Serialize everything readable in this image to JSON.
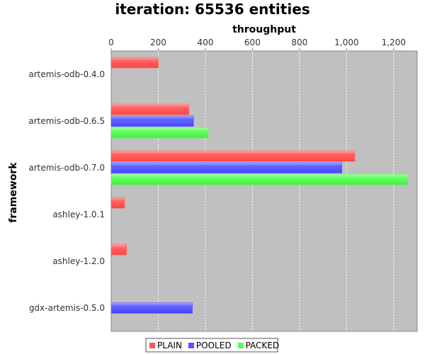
{
  "chart_data": {
    "type": "bar",
    "orientation": "horizontal",
    "title": "iteration: 65536 entities",
    "xlabel": "throughput",
    "ylabel": "framework",
    "xlim": [
      0,
      1300
    ],
    "x_ticks": [
      0,
      200,
      400,
      600,
      800,
      1000,
      1200
    ],
    "x_tick_labels": [
      "0",
      "200",
      "400",
      "600",
      "800",
      "1,000",
      "1,200"
    ],
    "categories": [
      "artemis-odb-0.4.0",
      "artemis-odb-0.6.5",
      "artemis-odb-0.7.0",
      "ashley-1.0.1",
      "ashley-1.2.0",
      "gdx-artemis-0.5.0"
    ],
    "series": [
      {
        "name": "PLAIN",
        "color": "#ff5555",
        "values": [
          200,
          330,
          1035,
          57,
          65,
          null
        ]
      },
      {
        "name": "POOLED",
        "color": "#5555ff",
        "values": [
          null,
          350,
          980,
          null,
          null,
          345
        ]
      },
      {
        "name": "PACKED",
        "color": "#55ff55",
        "values": [
          null,
          412,
          1260,
          null,
          null,
          null
        ]
      }
    ],
    "grid": true,
    "legend_position": "bottom"
  }
}
